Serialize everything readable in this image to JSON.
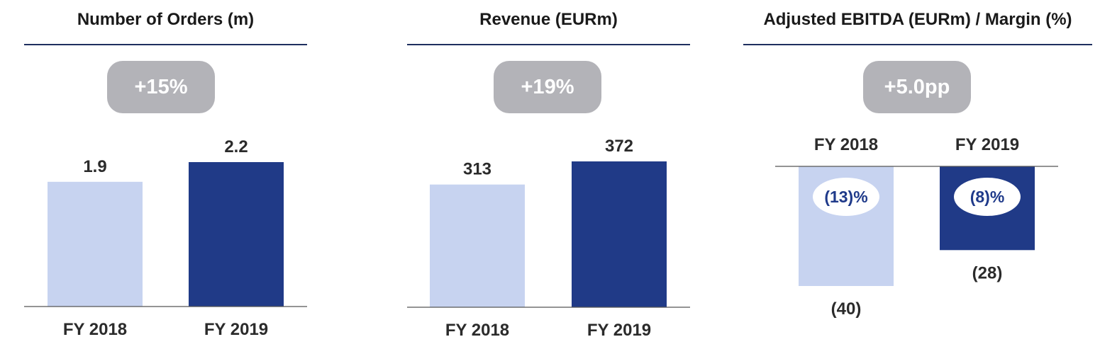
{
  "colors": {
    "light": "#c7d3f0",
    "dark": "#203a87",
    "badge": "#b3b3b8",
    "rule": "#1f2f5f"
  },
  "chart_data": [
    {
      "type": "bar",
      "title": "Number of Orders (m)",
      "badge": "+15%",
      "categories": [
        "FY 2018",
        "FY 2019"
      ],
      "values": [
        1.9,
        2.2
      ],
      "labels": [
        "1.9",
        "2.2"
      ],
      "ylim": [
        0,
        2.2
      ]
    },
    {
      "type": "bar",
      "title": "Revenue (EURm)",
      "badge": "+19%",
      "categories": [
        "FY 2018",
        "FY 2019"
      ],
      "values": [
        313,
        372
      ],
      "labels": [
        "313",
        "372"
      ],
      "ylim": [
        0,
        372
      ]
    },
    {
      "type": "bar",
      "title": "Adjusted EBITDA (EURm) / Margin (%)",
      "badge": "+5.0pp",
      "categories": [
        "FY 2018",
        "FY 2019"
      ],
      "values": [
        -40,
        -28
      ],
      "labels": [
        "(40)",
        "(28)"
      ],
      "margins": [
        "(13)%",
        "(8)%"
      ],
      "ylim": [
        -40,
        0
      ]
    }
  ]
}
